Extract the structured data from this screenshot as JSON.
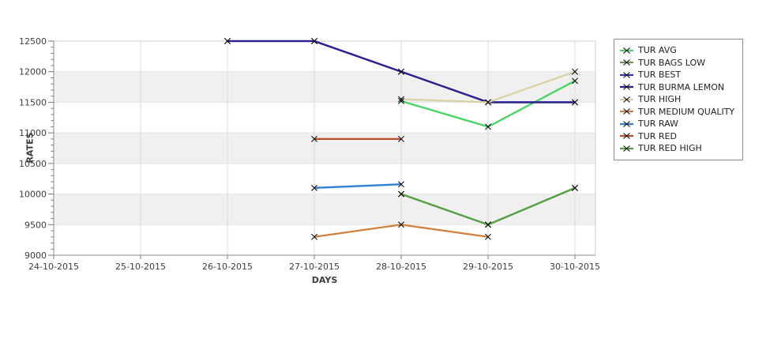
{
  "chart_data": {
    "type": "line",
    "title": "",
    "xlabel": "DAYS",
    "ylabel": "RATES",
    "categories": [
      "24-10-2015",
      "25-10-2015",
      "26-10-2015",
      "27-10-2015",
      "28-10-2015",
      "29-10-2015",
      "30-10-2015"
    ],
    "series": [
      {
        "name": "TUR AVG",
        "color": "#47d463",
        "values": [
          null,
          null,
          null,
          null,
          11520,
          11100,
          11850
        ]
      },
      {
        "name": "TUR BAGS LOW",
        "color": "#6e9850",
        "values": [
          null,
          null,
          null,
          null,
          10000,
          9500,
          10100
        ]
      },
      {
        "name": "TUR BEST",
        "color": "#3634b4",
        "values": [
          null,
          null,
          12500,
          12500,
          12000,
          11500,
          11500
        ]
      },
      {
        "name": "TUR BURMA LEMON",
        "color": "#2a1f8d",
        "values": [
          null,
          null,
          12500,
          12500,
          12000,
          11500,
          11500
        ]
      },
      {
        "name": "TUR HIGH",
        "color": "#d8d2a4",
        "values": [
          null,
          null,
          null,
          null,
          11550,
          11500,
          12000
        ]
      },
      {
        "name": "TUR MEDIUM QUALITY",
        "color": "#d2803c",
        "values": [
          null,
          null,
          null,
          9300,
          9500,
          9300,
          null
        ]
      },
      {
        "name": "TUR RAW",
        "color": "#2e7fd6",
        "values": [
          null,
          null,
          null,
          10100,
          10160,
          null,
          null
        ]
      },
      {
        "name": "TUR RED",
        "color": "#bf4a28",
        "values": [
          null,
          null,
          null,
          10900,
          10900,
          null,
          null
        ]
      },
      {
        "name": "TUR RED HIGH",
        "color": "#55a044",
        "values": [
          null,
          null,
          null,
          null,
          10000,
          9500,
          10100
        ]
      }
    ],
    "ylim": [
      9000,
      12500
    ],
    "ytick_step": 500,
    "yminor_step": 100,
    "grid": true,
    "legend_position": "right",
    "marker": "x",
    "band_color": "#f0f0f0",
    "gridline_color": "#d9d9d9",
    "axis_color": "#888888",
    "tick_label_color": "#3c3c3c",
    "marker_color": "#111111"
  }
}
